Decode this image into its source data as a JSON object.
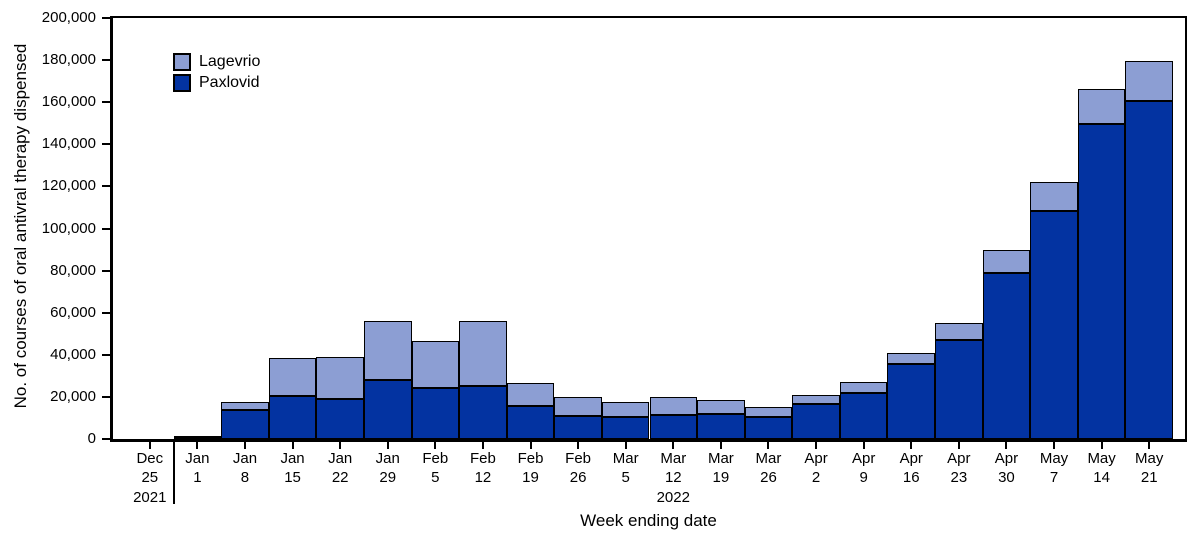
{
  "figure": {
    "x_axis_title": "Week ending date",
    "y_axis_title": "No. of courses of oral antivral therapy dispensed"
  },
  "legend": [
    {
      "label": "Lagevrio",
      "color": "#8C9ED3"
    },
    {
      "label": "Paxlovid",
      "color": "#0333A1"
    }
  ],
  "chart_data": {
    "type": "bar",
    "stacked": true,
    "title": "",
    "xlabel": "Week ending date",
    "ylabel": "No. of courses of oral antivral therapy dispensed",
    "ylim": [
      0,
      200000
    ],
    "ytick_interval": 20000,
    "grid": false,
    "legend_position": "top-left-inside",
    "categories": [
      {
        "month": "Dec",
        "day": "25"
      },
      {
        "month": "Jan",
        "day": "1"
      },
      {
        "month": "Jan",
        "day": "8"
      },
      {
        "month": "Jan",
        "day": "15"
      },
      {
        "month": "Jan",
        "day": "22"
      },
      {
        "month": "Jan",
        "day": "29"
      },
      {
        "month": "Feb",
        "day": "5"
      },
      {
        "month": "Feb",
        "day": "12"
      },
      {
        "month": "Feb",
        "day": "19"
      },
      {
        "month": "Feb",
        "day": "26"
      },
      {
        "month": "Mar",
        "day": "5"
      },
      {
        "month": "Mar",
        "day": "12"
      },
      {
        "month": "Mar",
        "day": "19"
      },
      {
        "month": "Mar",
        "day": "26"
      },
      {
        "month": "Apr",
        "day": "2"
      },
      {
        "month": "Apr",
        "day": "9"
      },
      {
        "month": "Apr",
        "day": "16"
      },
      {
        "month": "Apr",
        "day": "23"
      },
      {
        "month": "Apr",
        "day": "30"
      },
      {
        "month": "May",
        "day": "7"
      },
      {
        "month": "May",
        "day": "14"
      },
      {
        "month": "May",
        "day": "21"
      }
    ],
    "year_markers": [
      {
        "category_index": 0,
        "label": "2021"
      },
      {
        "category_index": 11,
        "label": "2022"
      }
    ],
    "year_divider_after_index": 0,
    "series": [
      {
        "name": "Paxlovid",
        "color": "#0333A1",
        "values": [
          200,
          900,
          14000,
          20500,
          19000,
          28000,
          24000,
          25000,
          15500,
          11000,
          10500,
          11500,
          12000,
          10500,
          16500,
          22000,
          35500,
          47000,
          79000,
          108500,
          149500,
          160500
        ]
      },
      {
        "name": "Lagevrio",
        "color": "#8C9ED3",
        "values": [
          100,
          600,
          3500,
          18000,
          20000,
          28000,
          22500,
          31000,
          11000,
          9000,
          7000,
          8500,
          6500,
          4500,
          4500,
          5000,
          5500,
          8000,
          11000,
          13500,
          17000,
          19000
        ]
      }
    ]
  }
}
